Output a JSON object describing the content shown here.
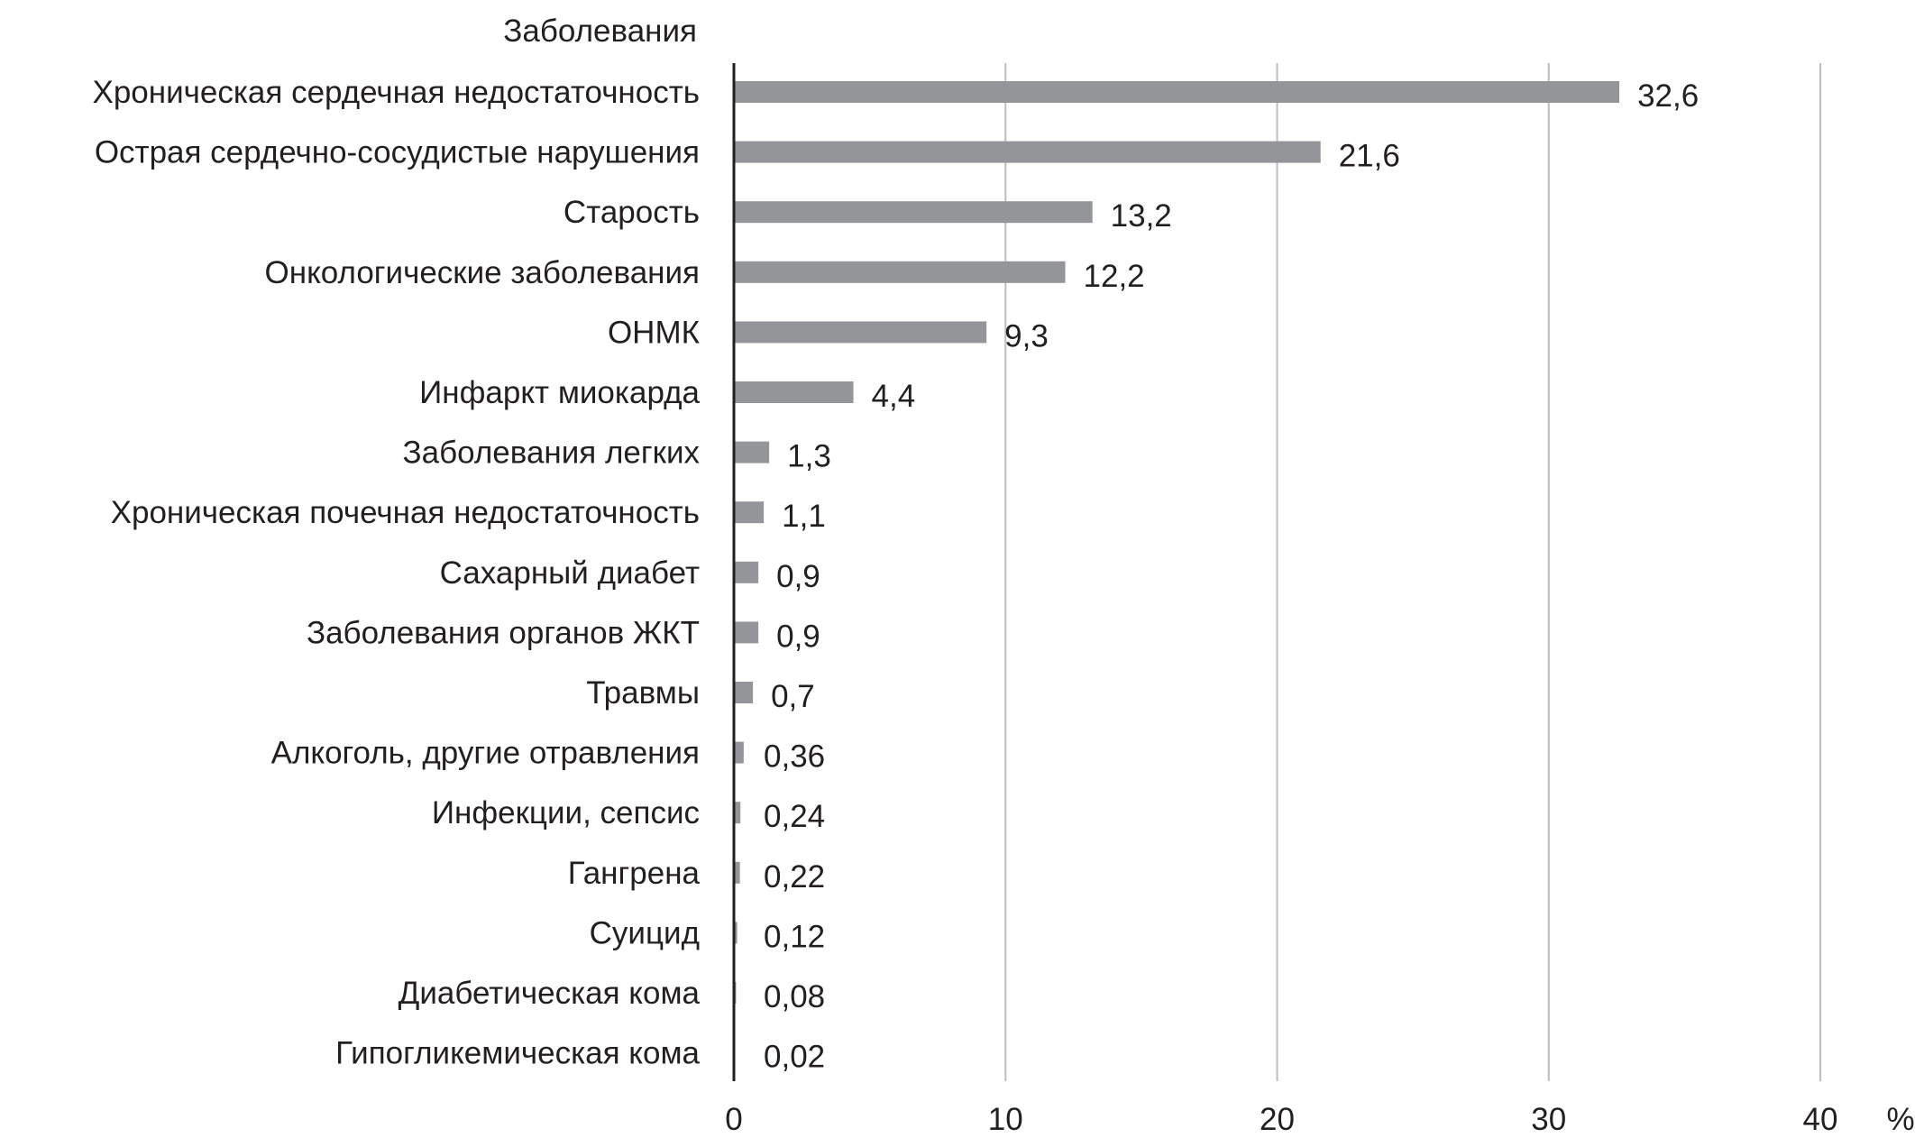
{
  "chart_data": {
    "type": "bar",
    "orientation": "horizontal",
    "title": "",
    "ylabel": "Заболевания",
    "xlabel": "%",
    "xlim": [
      0,
      40
    ],
    "xticks": [
      "0",
      "10",
      "20",
      "30",
      "40"
    ],
    "grid": true,
    "bar_color": "#939598",
    "grid_color": "#bcbec0",
    "categories": [
      "Хроническая сердечная недостаточность",
      "Острая сердечно-сосудистые нарушения",
      "Старость",
      "Онкологические заболевания",
      "ОНМК",
      "Инфаркт миокарда",
      "Заболевания легких",
      "Хроническая почечная недостаточность",
      "Сахарный диабет",
      "Заболевания органов ЖКТ",
      "Травмы",
      "Алкоголь, другие отравления",
      "Инфекции, сепсис",
      "Гангрена",
      "Суицид",
      "Диабетическая кома",
      "Гипогликемическая кома"
    ],
    "values": [
      32.6,
      21.6,
      13.2,
      12.2,
      9.3,
      4.4,
      1.3,
      1.1,
      0.9,
      0.9,
      0.7,
      0.36,
      0.24,
      0.22,
      0.12,
      0.08,
      0.02
    ],
    "value_labels": [
      "32,6",
      "21,6",
      "13,2",
      "12,2",
      "9,3",
      "4,4",
      "1,3",
      "1,1",
      "0,9",
      "0,9",
      "0,7",
      "0,36",
      "0,24",
      "0,22",
      "0,12",
      "0,08",
      "0,02"
    ]
  }
}
